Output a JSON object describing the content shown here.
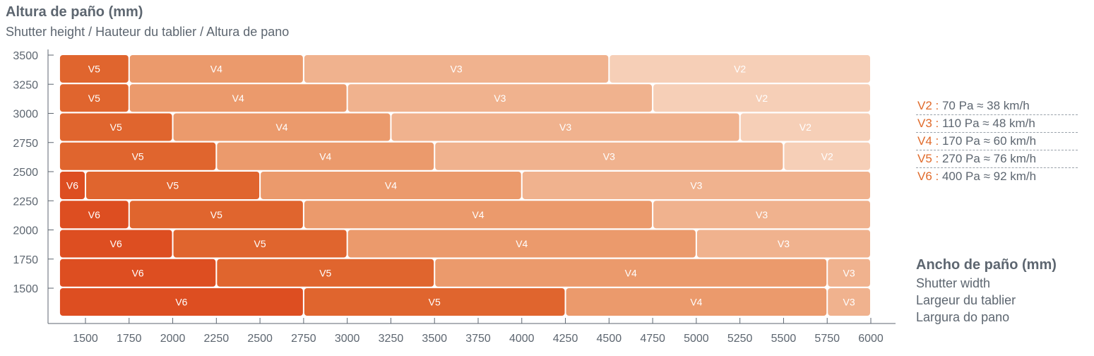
{
  "chart_data": {
    "type": "bar",
    "title": "Altura de paño (mm)",
    "subtitle": "Shutter height / Hauteur du tablier / Altura de pano",
    "xlabel": "Ancho de paño (mm)",
    "xlabel_translations": [
      "Shutter width",
      "Largeur du tablier",
      "Largura do pano"
    ],
    "xlim": [
      1300,
      6000
    ],
    "ylim": [
      1250,
      3500
    ],
    "x_ticks": [
      1500,
      1750,
      2000,
      2250,
      2500,
      2750,
      3000,
      3250,
      3500,
      3750,
      4000,
      4250,
      4500,
      4750,
      5000,
      5250,
      5500,
      5750,
      6000
    ],
    "y_ticks": [
      3500,
      3250,
      3000,
      2750,
      2500,
      2250,
      2000,
      1750,
      1500
    ],
    "rows": [
      {
        "height_top": 3500,
        "segments": [
          {
            "label": "V5",
            "x_start": 1350,
            "x_end": 1750
          },
          {
            "label": "V4",
            "x_start": 1750,
            "x_end": 2750
          },
          {
            "label": "V3",
            "x_start": 2750,
            "x_end": 4500
          },
          {
            "label": "V2",
            "x_start": 4500,
            "x_end": 6000
          }
        ]
      },
      {
        "height_top": 3250,
        "segments": [
          {
            "label": "V5",
            "x_start": 1350,
            "x_end": 1750
          },
          {
            "label": "V4",
            "x_start": 1750,
            "x_end": 3000
          },
          {
            "label": "V3",
            "x_start": 3000,
            "x_end": 4750
          },
          {
            "label": "V2",
            "x_start": 4750,
            "x_end": 6000
          }
        ]
      },
      {
        "height_top": 3000,
        "segments": [
          {
            "label": "V5",
            "x_start": 1350,
            "x_end": 2000
          },
          {
            "label": "V4",
            "x_start": 2000,
            "x_end": 3250
          },
          {
            "label": "V3",
            "x_start": 3250,
            "x_end": 5250
          },
          {
            "label": "V2",
            "x_start": 5250,
            "x_end": 6000
          }
        ]
      },
      {
        "height_top": 2750,
        "segments": [
          {
            "label": "V5",
            "x_start": 1350,
            "x_end": 2250
          },
          {
            "label": "V4",
            "x_start": 2250,
            "x_end": 3500
          },
          {
            "label": "V3",
            "x_start": 3500,
            "x_end": 5500
          },
          {
            "label": "V2",
            "x_start": 5500,
            "x_end": 6000
          }
        ]
      },
      {
        "height_top": 2500,
        "segments": [
          {
            "label": "V6",
            "x_start": 1350,
            "x_end": 1500
          },
          {
            "label": "V5",
            "x_start": 1500,
            "x_end": 2500
          },
          {
            "label": "V4",
            "x_start": 2500,
            "x_end": 4000
          },
          {
            "label": "V3",
            "x_start": 4000,
            "x_end": 6000
          }
        ]
      },
      {
        "height_top": 2250,
        "segments": [
          {
            "label": "V6",
            "x_start": 1350,
            "x_end": 1750
          },
          {
            "label": "V5",
            "x_start": 1750,
            "x_end": 2750
          },
          {
            "label": "V4",
            "x_start": 2750,
            "x_end": 4750
          },
          {
            "label": "V3",
            "x_start": 4750,
            "x_end": 6000
          }
        ]
      },
      {
        "height_top": 2000,
        "segments": [
          {
            "label": "V6",
            "x_start": 1350,
            "x_end": 2000
          },
          {
            "label": "V5",
            "x_start": 2000,
            "x_end": 3000
          },
          {
            "label": "V4",
            "x_start": 3000,
            "x_end": 5000
          },
          {
            "label": "V3",
            "x_start": 5000,
            "x_end": 6000
          }
        ]
      },
      {
        "height_top": 1750,
        "segments": [
          {
            "label": "V6",
            "x_start": 1350,
            "x_end": 2250
          },
          {
            "label": "V5",
            "x_start": 2250,
            "x_end": 3500
          },
          {
            "label": "V4",
            "x_start": 3500,
            "x_end": 5750
          },
          {
            "label": "V3",
            "x_start": 5750,
            "x_end": 6000
          }
        ]
      },
      {
        "height_top": 1500,
        "segments": [
          {
            "label": "V6",
            "x_start": 1350,
            "x_end": 2750
          },
          {
            "label": "V5",
            "x_start": 2750,
            "x_end": 4250
          },
          {
            "label": "V4",
            "x_start": 4250,
            "x_end": 5750
          },
          {
            "label": "V3",
            "x_start": 5750,
            "x_end": 6000
          }
        ]
      }
    ],
    "class_colors": {
      "V6": "#dd4e21",
      "V5": "#e0652e",
      "V4": "#eb9a6c",
      "V3": "#f0b28e",
      "V2": "#f6cfb7"
    },
    "legend": [
      {
        "code": "V2 :",
        "text": "70 Pa ≈ 38 km/h"
      },
      {
        "code": "V3 :",
        "text": "110 Pa ≈ 48 km/h"
      },
      {
        "code": "V4 :",
        "text": "170 Pa ≈ 60 km/h"
      },
      {
        "code": "V5 :",
        "text": "270 Pa ≈ 76 km/h"
      },
      {
        "code": "V6 :",
        "text": "400 Pa ≈ 92 km/h"
      }
    ],
    "legend_placement": "right",
    "grid": false,
    "colors": {
      "text": "#5d6670",
      "legend_code": "#e06a2a",
      "axis": "#5d6670"
    }
  }
}
